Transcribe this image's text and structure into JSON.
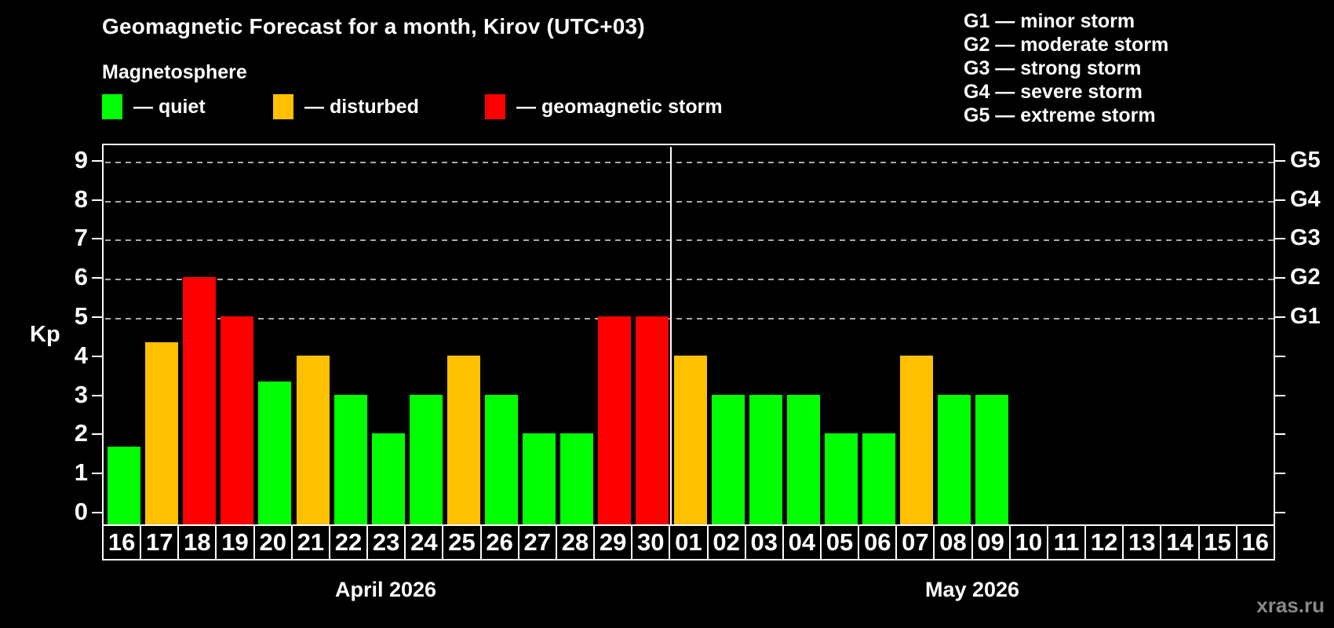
{
  "title": "Geomagnetic Forecast for a month, Kirov (UTC+03)",
  "subtitle": "Magnetosphere",
  "legend": {
    "quiet_label": "— quiet",
    "disturbed_label": "— disturbed",
    "storm_label": "— geomagnetic storm"
  },
  "g_legend": [
    "G1 — minor storm",
    "G2 — moderate storm",
    "G3 — strong storm",
    "G4 — severe storm",
    "G5 — extreme storm"
  ],
  "watermark": "xras.ru",
  "colors": {
    "quiet": "#00ff00",
    "disturbed": "#ffc000",
    "storm": "#ff0000",
    "background": "#000000",
    "axis": "#ffffff",
    "gridline": "#aaaaaa",
    "watermark": "#8a8a8a"
  },
  "chart_data": {
    "type": "bar",
    "ylabel": "Kp",
    "ylim": [
      0,
      9
    ],
    "grid": "dashed horizontal lines at Kp 5..9 only",
    "legend_position": "top-left (bar states), top-right (G scale)",
    "y_ticks": [
      "0",
      "1",
      "2",
      "3",
      "4",
      "5",
      "6",
      "7",
      "8",
      "9"
    ],
    "right_axis": [
      {
        "kp": 5,
        "label": "G1"
      },
      {
        "kp": 6,
        "label": "G2"
      },
      {
        "kp": 7,
        "label": "G3"
      },
      {
        "kp": 8,
        "label": "G4"
      },
      {
        "kp": 9,
        "label": "G5"
      }
    ],
    "months": [
      {
        "label": "April 2026",
        "days": [
          {
            "day": "16",
            "kp": 1.67,
            "state": "quiet"
          },
          {
            "day": "17",
            "kp": 4.33,
            "state": "disturbed"
          },
          {
            "day": "18",
            "kp": 6,
            "state": "storm"
          },
          {
            "day": "19",
            "kp": 5,
            "state": "storm"
          },
          {
            "day": "20",
            "kp": 3.33,
            "state": "quiet"
          },
          {
            "day": "21",
            "kp": 4,
            "state": "disturbed"
          },
          {
            "day": "22",
            "kp": 3,
            "state": "quiet"
          },
          {
            "day": "23",
            "kp": 2,
            "state": "quiet"
          },
          {
            "day": "24",
            "kp": 3,
            "state": "quiet"
          },
          {
            "day": "25",
            "kp": 4,
            "state": "disturbed"
          },
          {
            "day": "26",
            "kp": 3,
            "state": "quiet"
          },
          {
            "day": "27",
            "kp": 2,
            "state": "quiet"
          },
          {
            "day": "28",
            "kp": 2,
            "state": "quiet"
          },
          {
            "day": "29",
            "kp": 5,
            "state": "storm"
          },
          {
            "day": "30",
            "kp": 5,
            "state": "storm"
          }
        ]
      },
      {
        "label": "May 2026",
        "days": [
          {
            "day": "01",
            "kp": 4,
            "state": "disturbed"
          },
          {
            "day": "02",
            "kp": 3,
            "state": "quiet"
          },
          {
            "day": "03",
            "kp": 3,
            "state": "quiet"
          },
          {
            "day": "04",
            "kp": 3,
            "state": "quiet"
          },
          {
            "day": "05",
            "kp": 2,
            "state": "quiet"
          },
          {
            "day": "06",
            "kp": 2,
            "state": "quiet"
          },
          {
            "day": "07",
            "kp": 4,
            "state": "disturbed"
          },
          {
            "day": "08",
            "kp": 3,
            "state": "quiet"
          },
          {
            "day": "09",
            "kp": 3,
            "state": "quiet"
          },
          {
            "day": "10",
            "kp": null,
            "state": "none"
          },
          {
            "day": "11",
            "kp": null,
            "state": "none"
          },
          {
            "day": "12",
            "kp": null,
            "state": "none"
          },
          {
            "day": "13",
            "kp": null,
            "state": "none"
          },
          {
            "day": "14",
            "kp": null,
            "state": "none"
          },
          {
            "day": "15",
            "kp": null,
            "state": "none"
          },
          {
            "day": "16",
            "kp": null,
            "state": "none"
          }
        ]
      }
    ]
  }
}
